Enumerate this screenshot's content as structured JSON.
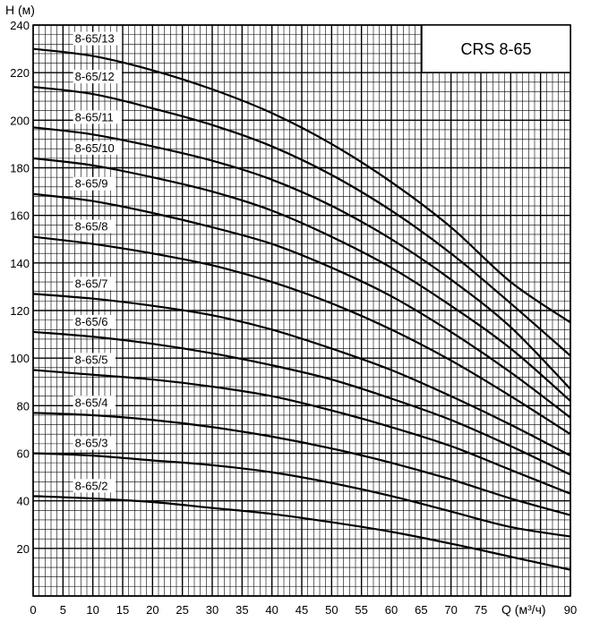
{
  "chart_data": {
    "type": "line",
    "title": "CRS 8-65",
    "xlabel": "Q (м³/ч)",
    "ylabel": "H (м)",
    "xlim": [
      0,
      90
    ],
    "ylim": [
      0,
      240
    ],
    "x_ticks": [
      0,
      5,
      10,
      15,
      20,
      25,
      30,
      35,
      40,
      45,
      50,
      55,
      60,
      65,
      70,
      75,
      80,
      85,
      90
    ],
    "y_ticks": [
      20,
      40,
      60,
      80,
      100,
      120,
      140,
      160,
      180,
      200,
      220,
      240
    ],
    "grid": true,
    "x": [
      0,
      10,
      20,
      30,
      40,
      50,
      60,
      70,
      80,
      90
    ],
    "series": [
      {
        "name": "8-65/2",
        "values": [
          42,
          41,
          39.5,
          37,
          34.5,
          31,
          27,
          22,
          16.5,
          11
        ]
      },
      {
        "name": "8-65/3",
        "values": [
          60,
          59,
          57,
          55,
          52,
          47.5,
          42,
          35.5,
          29,
          25
        ]
      },
      {
        "name": "8-65/4",
        "values": [
          77,
          76,
          74,
          71,
          67,
          62,
          56,
          49,
          41,
          34
        ]
      },
      {
        "name": "8-65/5",
        "values": [
          95,
          93,
          91,
          88,
          84,
          78,
          71,
          63,
          53,
          43
        ]
      },
      {
        "name": "8-65/6",
        "values": [
          111,
          109,
          106,
          102,
          97,
          91,
          83,
          74,
          63,
          51
        ]
      },
      {
        "name": "8-65/7",
        "values": [
          127,
          125,
          122,
          118,
          112,
          104,
          95,
          84,
          72,
          59
        ]
      },
      {
        "name": "8-65/8",
        "values": [
          151,
          148,
          144,
          139,
          132,
          123,
          112,
          99,
          84,
          68
        ]
      },
      {
        "name": "8-65/9",
        "values": [
          169,
          166,
          161,
          155,
          148,
          138,
          126,
          111,
          94,
          75
        ]
      },
      {
        "name": "8-65/10",
        "values": [
          184,
          181,
          176,
          170,
          162,
          151,
          138,
          122,
          104,
          82
        ]
      },
      {
        "name": "8-65/11",
        "values": [
          197,
          194,
          189,
          183,
          175,
          164,
          150,
          133,
          113,
          87
        ]
      },
      {
        "name": "8-65/12",
        "values": [
          214,
          211,
          205,
          198,
          189,
          177,
          162,
          144,
          123,
          101
        ]
      },
      {
        "name": "8-65/13",
        "values": [
          230,
          227,
          221,
          213,
          203,
          190,
          174,
          155,
          132,
          115
        ]
      }
    ]
  }
}
